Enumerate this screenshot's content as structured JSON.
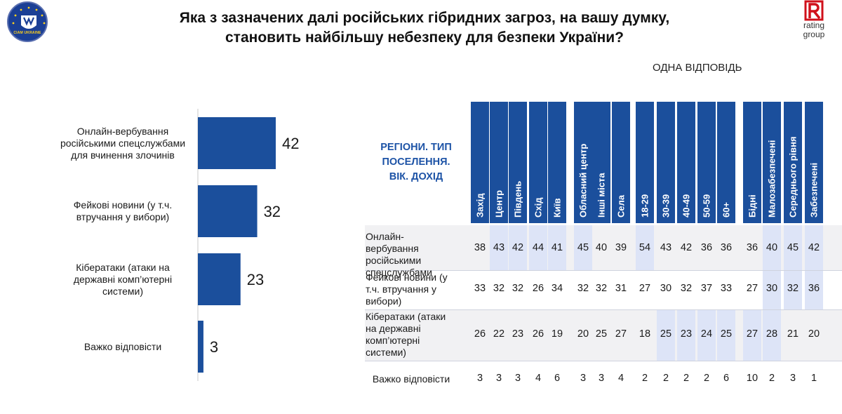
{
  "header": {
    "title_line1": "Яка з зазначених далі російських гібридних загроз, на вашу думку,",
    "title_line2": "становить найбільшу небезпеку для безпеки України?",
    "one_answer": "ОДНА ВІДПОВІДЬ",
    "logo_right_text_1": "rating",
    "logo_right_text_2": "group",
    "logo_left_text": "CIAM UKRAINE"
  },
  "colors": {
    "bar": "#1b4f9c",
    "header": "#1b4f9c",
    "highlight": "#dde4f7",
    "band": "#f1f1f3",
    "brand_red": "#d0111b"
  },
  "chart_data": {
    "type": "bar",
    "orientation": "horizontal",
    "categories": [
      "Онлайн-вербування російськими спецслужбами для вчинення злочинів",
      "Фейкові новини (у т.ч. втручання у вибори)",
      "Кібератаки (атаки на державні комп’ютерні системи)",
      "Важко відповісти"
    ],
    "values": [
      42,
      32,
      23,
      3
    ],
    "xlim": [
      0,
      45
    ]
  },
  "bar_labels": [
    [
      "Онлайн-вербування",
      "російськими спецслужбами",
      "для вчинення злочинів"
    ],
    [
      "Фейкові новини (у т.ч.",
      "втручання у вибори)"
    ],
    [
      "Кібератаки (атаки на",
      "державні комп’ютерні",
      "системи)"
    ],
    [
      "Важко відповісти"
    ]
  ],
  "table": {
    "header_title": [
      "РЕГІОНИ. ТИП",
      "ПОСЕЛЕННЯ.",
      "ВІК. ДОХІД"
    ],
    "columns": [
      "Захід",
      "Центр",
      "Південь",
      "Схід",
      "Київ",
      "Обласний центр",
      "Інші міста",
      "Села",
      "18-29",
      "30-39",
      "40-49",
      "50-59",
      "60+",
      "Бідні",
      "Малозабезпечені",
      "Середнього рівня",
      "Забезпечені"
    ],
    "rows": [
      {
        "label": [
          "Онлайн-вербування",
          "російськими",
          "спецслужбами"
        ],
        "values": [
          "38",
          "43",
          "42",
          "44",
          "41",
          "45",
          "40",
          "39",
          "54",
          "43",
          "42",
          "36",
          "36",
          "36",
          "40",
          "45",
          "42"
        ]
      },
      {
        "label": [
          "Фейкові новини  (у",
          "т.ч. втручання у",
          "вибори)"
        ],
        "values": [
          "33",
          "32",
          "32",
          "26",
          "34",
          "32",
          "32",
          "31",
          "27",
          "30",
          "32",
          "37",
          "33",
          "27",
          "30",
          "32",
          "36"
        ]
      },
      {
        "label": [
          "Кібератаки  (атаки",
          "на державні",
          "комп’ютерні",
          "системи)"
        ],
        "values": [
          "26",
          "22",
          "23",
          "26",
          "19",
          "20",
          "25",
          "27",
          "18",
          "25",
          "23",
          "24",
          "25",
          "27",
          "28",
          "21",
          "20"
        ]
      },
      {
        "label": [
          "Важко відповісти"
        ],
        "values": [
          "3",
          "3",
          "3",
          "4",
          "6",
          "3",
          "3",
          "4",
          "2",
          "2",
          "2",
          "2",
          "6",
          "10",
          "2",
          "3",
          "1"
        ]
      }
    ]
  }
}
